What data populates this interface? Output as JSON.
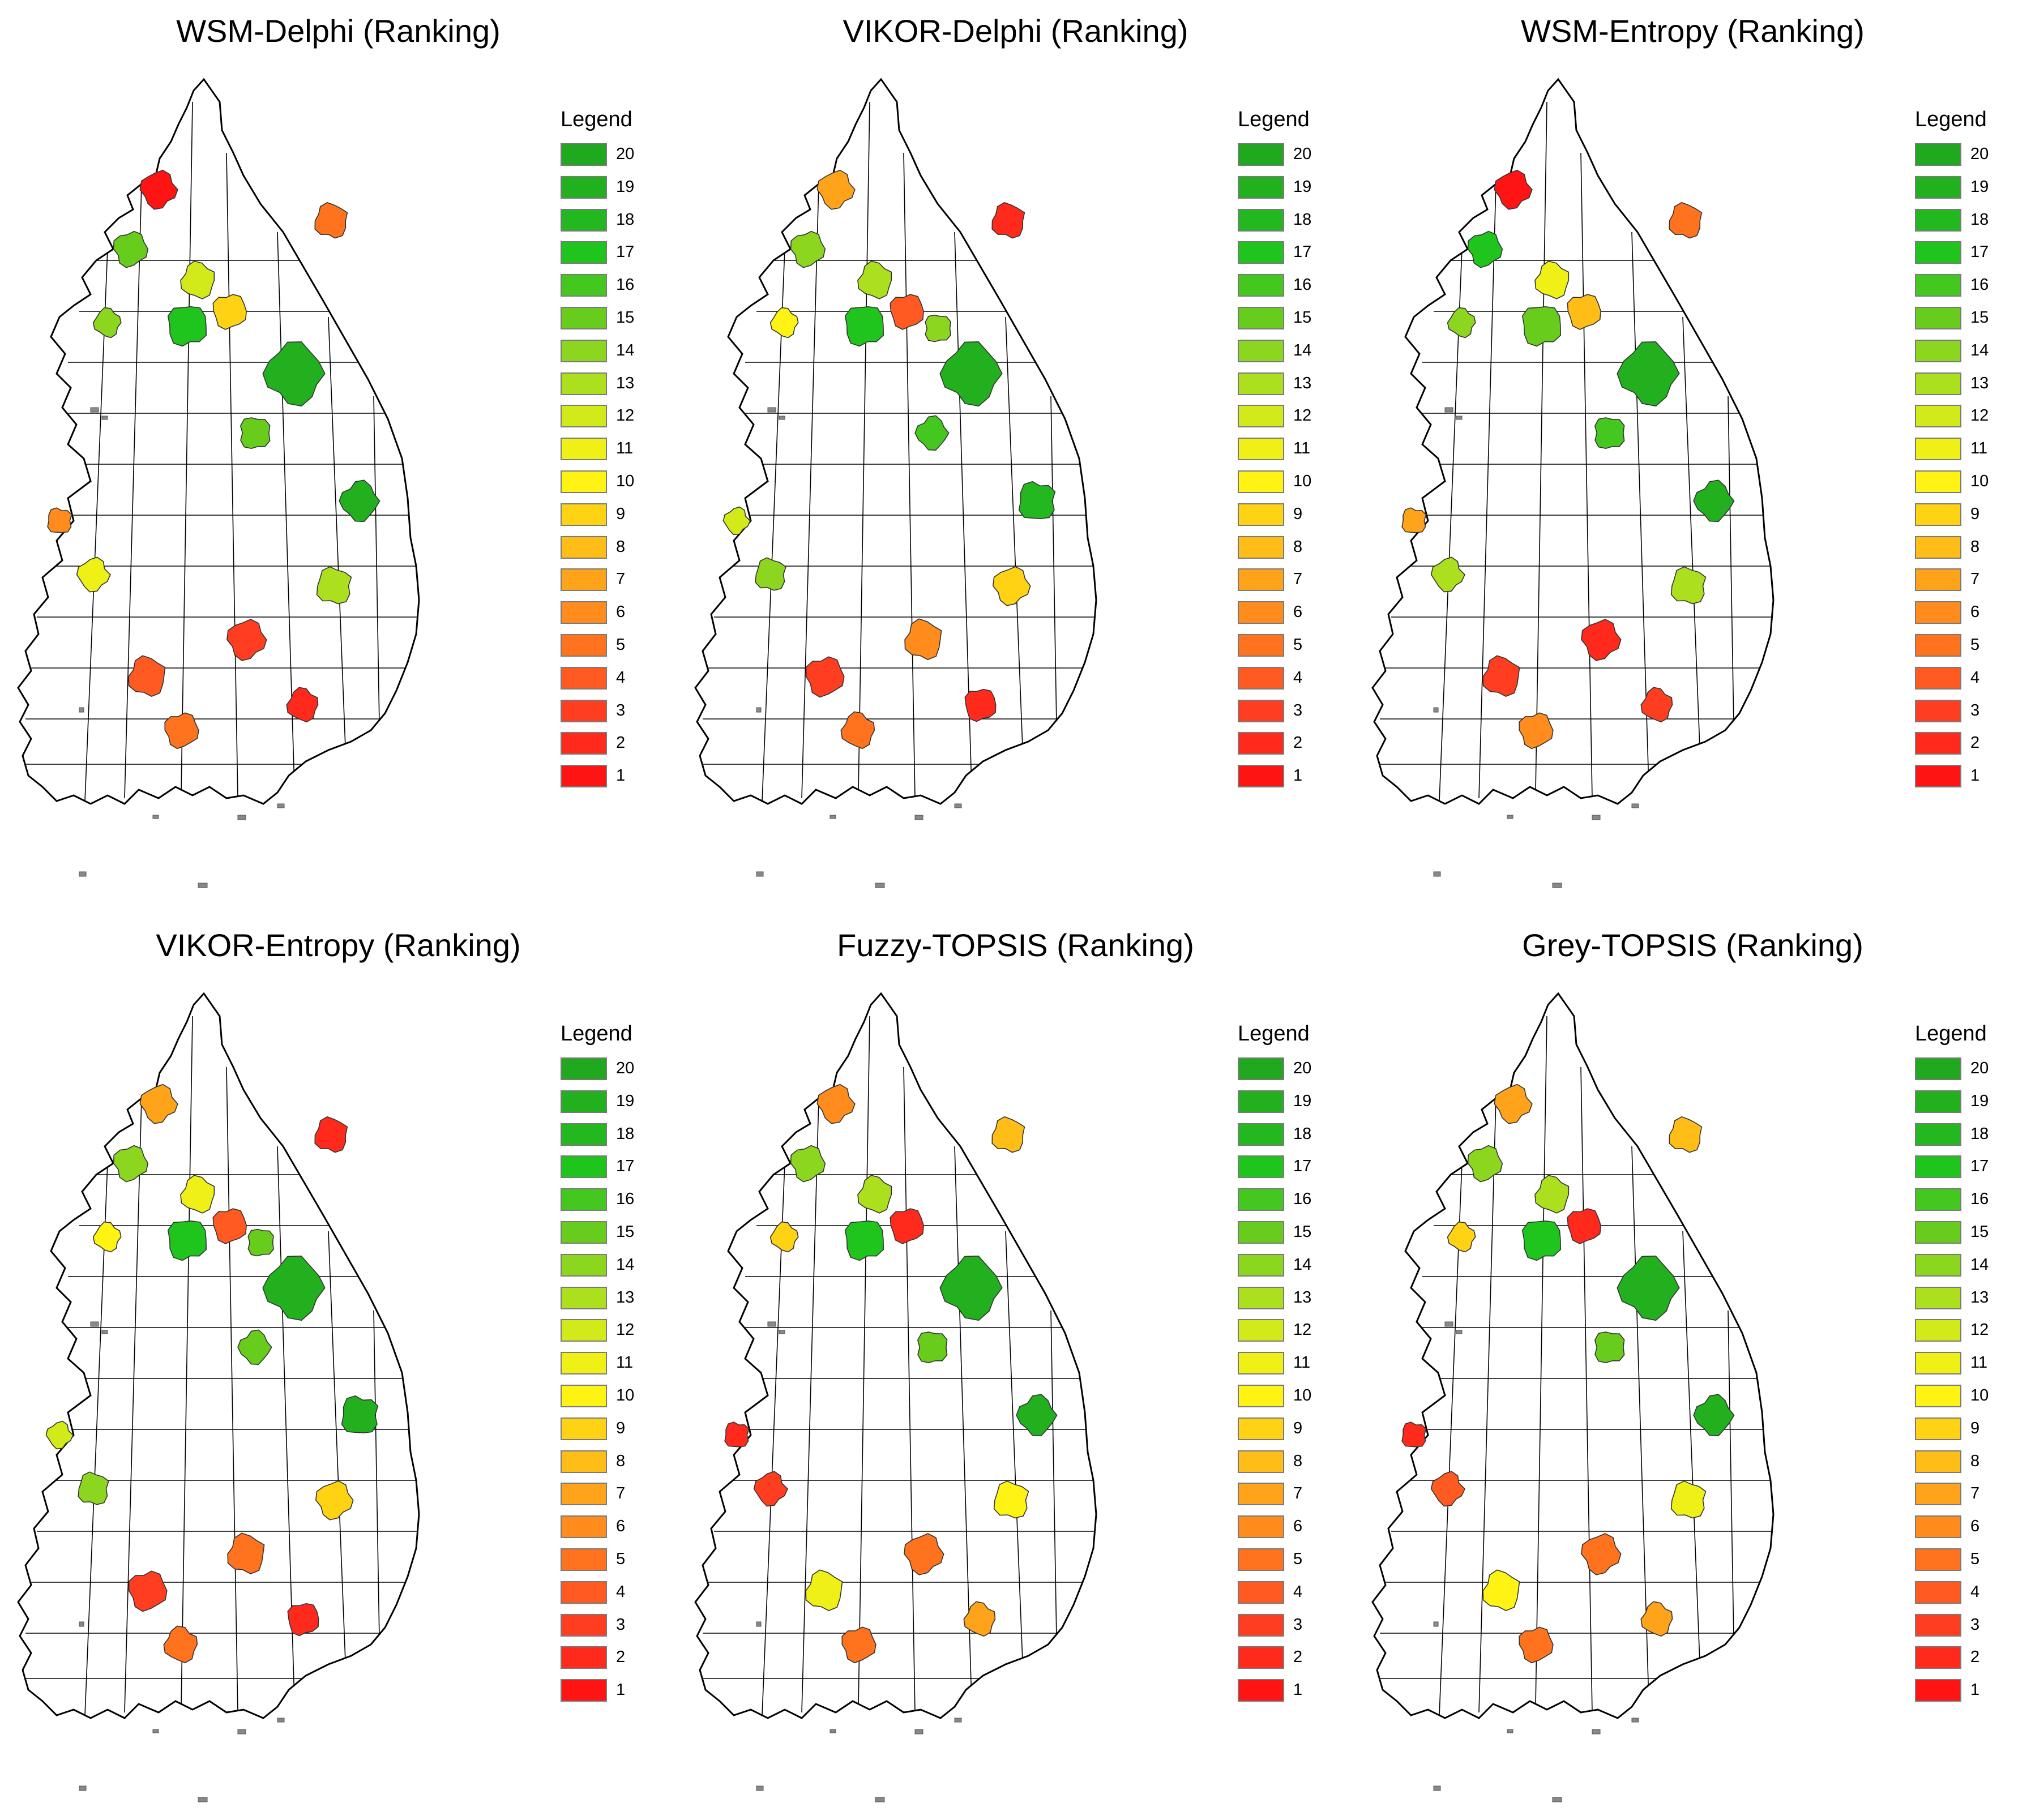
{
  "panels": [
    {
      "title": "WSM-Delphi (Ranking)",
      "regions": [
        [
          "nw_north",
          1
        ],
        [
          "ne_coast",
          5
        ],
        [
          "nw_west",
          15
        ],
        [
          "nw_center",
          12
        ],
        [
          "nw_center_e",
          9
        ],
        [
          "west_mid",
          14
        ],
        [
          "center",
          17
        ],
        [
          "east_big",
          19
        ],
        [
          "mid_east",
          15
        ],
        [
          "east_mid",
          19
        ],
        [
          "west_coast",
          6
        ],
        [
          "sw_mid",
          11
        ],
        [
          "se_mid",
          13
        ],
        [
          "south_center",
          3
        ],
        [
          "sw_south",
          4
        ],
        [
          "south_coast",
          5
        ],
        [
          "se_coast",
          2
        ]
      ]
    },
    {
      "title": "VIKOR-Delphi (Ranking)",
      "regions": [
        [
          "nw_north",
          7
        ],
        [
          "ne_coast",
          2
        ],
        [
          "nw_west",
          14
        ],
        [
          "nw_center",
          13
        ],
        [
          "nw_center_e",
          4
        ],
        [
          "west_mid",
          10
        ],
        [
          "center",
          17
        ],
        [
          "east_big",
          19
        ],
        [
          "east_north",
          14
        ],
        [
          "mid_east",
          16
        ],
        [
          "east_mid",
          18
        ],
        [
          "west_coast",
          12
        ],
        [
          "sw_mid",
          14
        ],
        [
          "se_mid",
          9
        ],
        [
          "south_center",
          6
        ],
        [
          "sw_south",
          3
        ],
        [
          "south_coast",
          5
        ],
        [
          "se_coast",
          2
        ]
      ]
    },
    {
      "title": "WSM-Entropy (Ranking)",
      "regions": [
        [
          "nw_north",
          1
        ],
        [
          "ne_coast",
          5
        ],
        [
          "nw_west",
          17
        ],
        [
          "nw_center",
          11
        ],
        [
          "nw_center_e",
          8
        ],
        [
          "west_mid",
          14
        ],
        [
          "center",
          15
        ],
        [
          "east_big",
          19
        ],
        [
          "mid_east",
          16
        ],
        [
          "east_mid",
          19
        ],
        [
          "west_coast",
          7
        ],
        [
          "sw_mid",
          13
        ],
        [
          "se_mid",
          13
        ],
        [
          "south_center",
          2
        ],
        [
          "sw_south",
          3
        ],
        [
          "south_coast",
          6
        ],
        [
          "se_coast",
          3
        ]
      ]
    },
    {
      "title": "VIKOR-Entropy (Ranking)",
      "regions": [
        [
          "nw_north",
          7
        ],
        [
          "ne_coast",
          2
        ],
        [
          "nw_west",
          14
        ],
        [
          "nw_center",
          11
        ],
        [
          "nw_center_e",
          4
        ],
        [
          "west_mid",
          10
        ],
        [
          "center",
          17
        ],
        [
          "east_big",
          19
        ],
        [
          "east_north",
          15
        ],
        [
          "mid_east",
          15
        ],
        [
          "east_mid",
          19
        ],
        [
          "west_coast",
          12
        ],
        [
          "sw_mid",
          14
        ],
        [
          "se_mid",
          9
        ],
        [
          "south_center",
          5
        ],
        [
          "sw_south",
          3
        ],
        [
          "south_coast",
          5
        ],
        [
          "se_coast",
          2
        ]
      ]
    },
    {
      "title": "Fuzzy-TOPSIS (Ranking)",
      "regions": [
        [
          "nw_north",
          6
        ],
        [
          "ne_coast",
          8
        ],
        [
          "nw_west",
          14
        ],
        [
          "nw_center",
          13
        ],
        [
          "nw_center_e",
          2
        ],
        [
          "west_mid",
          9
        ],
        [
          "center",
          17
        ],
        [
          "east_big",
          19
        ],
        [
          "mid_east",
          15
        ],
        [
          "east_mid",
          19
        ],
        [
          "west_coast",
          2
        ],
        [
          "sw_mid",
          3
        ],
        [
          "se_mid",
          10
        ],
        [
          "south_center",
          5
        ],
        [
          "sw_south",
          11
        ],
        [
          "south_coast",
          5
        ],
        [
          "se_coast",
          7
        ]
      ]
    },
    {
      "title": "Grey-TOPSIS (Ranking)",
      "regions": [
        [
          "nw_north",
          7
        ],
        [
          "ne_coast",
          8
        ],
        [
          "nw_west",
          14
        ],
        [
          "nw_center",
          13
        ],
        [
          "nw_center_e",
          2
        ],
        [
          "west_mid",
          9
        ],
        [
          "center",
          17
        ],
        [
          "east_big",
          19
        ],
        [
          "mid_east",
          15
        ],
        [
          "east_mid",
          19
        ],
        [
          "west_coast",
          2
        ],
        [
          "sw_mid",
          4
        ],
        [
          "se_mid",
          11
        ],
        [
          "south_center",
          5
        ],
        [
          "sw_south",
          10
        ],
        [
          "south_coast",
          5
        ],
        [
          "se_coast",
          7
        ]
      ]
    }
  ],
  "legend": {
    "title": "Legend",
    "ranks": [
      "20",
      "19",
      "18",
      "17",
      "16",
      "15",
      "14",
      "13",
      "12",
      "11",
      "10",
      "9",
      "8",
      "7",
      "6",
      "5",
      "4",
      "3",
      "2",
      "1"
    ],
    "colors": {
      "20": "#20a81e",
      "19": "#22b01f",
      "18": "#24b820",
      "17": "#1fc41c",
      "16": "#44c81f",
      "15": "#68cc1c",
      "14": "#8cd61f",
      "13": "#acdf1e",
      "12": "#d2ea1a",
      "11": "#eef016",
      "10": "#fff314",
      "9": "#ffd214",
      "8": "#ffbd17",
      "7": "#ffa31a",
      "6": "#ff8c1c",
      "5": "#ff731f",
      "4": "#ff5a21",
      "3": "#ff3d20",
      "2": "#ff2a1c",
      "1": "#ff1414"
    }
  }
}
